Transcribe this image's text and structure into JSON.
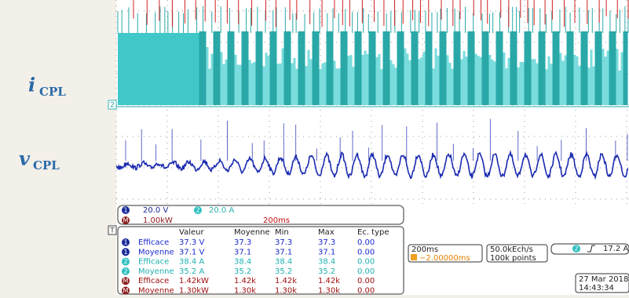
{
  "signal_labels": [
    {
      "symbol": "i",
      "subscript": "CPL"
    },
    {
      "symbol": "v",
      "subscript": "CPL"
    }
  ],
  "screen": {
    "channel2_marker": "2",
    "trigger_marker": "T"
  },
  "channel_bar": {
    "ch1_badge": "1",
    "ch1_scale": "20.0 V",
    "ch2_badge": "2",
    "ch2_scale": "20.0 A",
    "math_badge": "M",
    "math_scale": "1.00kW",
    "math_timebase": "200ms"
  },
  "measurements": {
    "headers": [
      "Valeur",
      "Moyenne",
      "Min",
      "Max",
      "Ec. type"
    ],
    "rows": [
      {
        "badge": "1",
        "name": "Efficace",
        "cells": [
          "37.3 V",
          "37.3",
          "37.3",
          "37.3",
          "0.00"
        ]
      },
      {
        "badge": "1",
        "name": "Moyenne",
        "cells": [
          "37.1 V",
          "37.1",
          "37.1",
          "37.1",
          "0.00"
        ]
      },
      {
        "badge": "2",
        "name": "Efficace",
        "cells": [
          "38.4 A",
          "38.4",
          "38.4",
          "38.4",
          "0.00"
        ]
      },
      {
        "badge": "2",
        "name": "Moyenne",
        "cells": [
          "35.2 A",
          "35.2",
          "35.2",
          "35.2",
          "0.00"
        ]
      },
      {
        "badge": "M",
        "name": "Efficace",
        "cells": [
          "1.42kW",
          "1.42k",
          "1.42k",
          "1.42k",
          "0.00"
        ]
      },
      {
        "badge": "M",
        "name": "Moyenne",
        "cells": [
          "1.30kW",
          "1.30k",
          "1.30k",
          "1.30k",
          "0.00"
        ]
      }
    ]
  },
  "status": {
    "timebase": "200ms",
    "delay": "−2.00000ms",
    "sample_rate": "50.0kEch/s",
    "record_length": "100k points",
    "trigger_channel": "2",
    "trigger_level": "17.2 A",
    "date": "27 Mar 2018",
    "time": "14:43:34"
  }
}
